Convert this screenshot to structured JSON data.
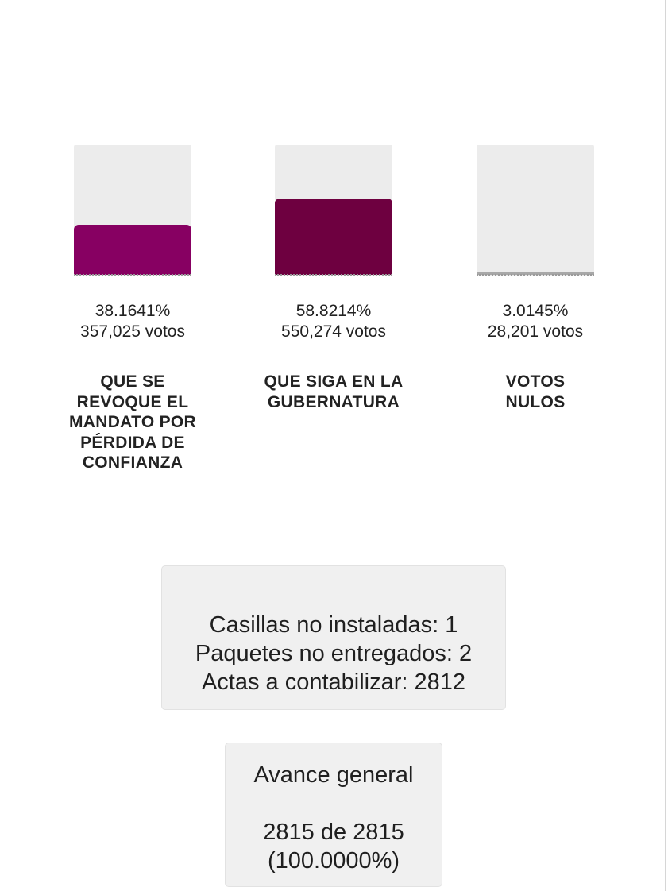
{
  "chart_data": {
    "type": "bar",
    "categories": [
      "QUE SE REVOQUE EL MANDATO POR PÉRDIDA DE CONFIANZA",
      "QUE SIGA EN LA GUBERNATURA",
      "VOTOS NULOS"
    ],
    "values": [
      38.1641,
      58.8214,
      3.0145
    ],
    "votes": [
      357025,
      550274,
      28201
    ],
    "percent_labels": [
      "38.1641%",
      "58.8214%",
      "3.0145%"
    ],
    "vote_labels": [
      "357,025 votos",
      "550,274 votos",
      "28,201 votos"
    ],
    "colors": [
      "#870062",
      "#6e0040",
      "#a8a8a8"
    ],
    "ylim": [
      0,
      100
    ],
    "grid": false,
    "title": "",
    "xlabel": "",
    "ylabel": ""
  },
  "status": {
    "casillas": "Casillas no instaladas: 1",
    "paquetes": "Paquetes no entregados: 2",
    "actas": "Actas a contabilizar: 2812"
  },
  "progress": {
    "title": "Avance general",
    "count": "2815 de 2815",
    "percent": "(100.0000%)"
  }
}
